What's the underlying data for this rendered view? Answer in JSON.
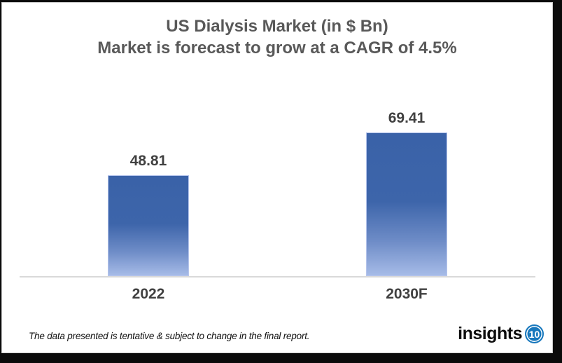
{
  "chart_data": {
    "type": "bar",
    "title": "US Dialysis Market (in $ Bn)",
    "subtitle": "Market is forecast to grow at a CAGR of 4.5%",
    "categories": [
      "2022",
      "2030F"
    ],
    "values": [
      48.81,
      69.41
    ],
    "value_labels": [
      "48.81",
      "69.41"
    ],
    "ylim": [
      0,
      80
    ],
    "grid": false,
    "legend": false,
    "bar_gradient_top": "#3a62a8",
    "bar_gradient_bottom": "#a6bbe7",
    "axis_line_color": "#d9d9d9"
  },
  "footer": {
    "disclaimer": "The data presented is tentative & subject to change in the final report.",
    "logo": {
      "text": "insights",
      "badge": "10",
      "badge_color": "#1878bd"
    }
  },
  "colors": {
    "title_text": "#595959",
    "label_text": "#404040",
    "frame": "#0b0b0b",
    "card_border": "#cccccc"
  }
}
